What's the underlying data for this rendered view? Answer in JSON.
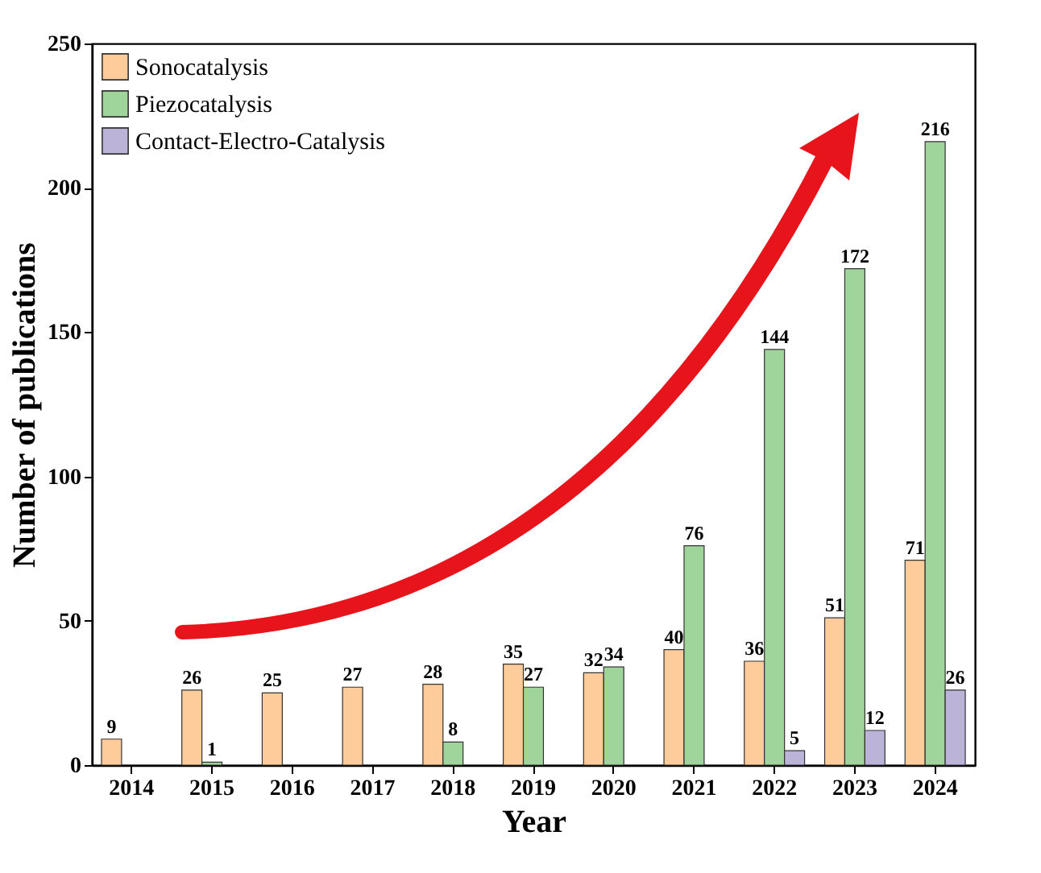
{
  "chart_data": {
    "type": "bar",
    "xlabel": "Year",
    "ylabel": "Number of publications",
    "categories": [
      "2014",
      "2015",
      "2016",
      "2017",
      "2018",
      "2019",
      "2020",
      "2021",
      "2022",
      "2023",
      "2024"
    ],
    "series": [
      {
        "name": "Sonocatalysis",
        "color": "#fdcc9a",
        "values": [
          9,
          26,
          25,
          27,
          28,
          35,
          32,
          40,
          36,
          51,
          71
        ]
      },
      {
        "name": "Piezocatalysis",
        "color": "#9fd49a",
        "values": [
          null,
          1,
          null,
          null,
          8,
          27,
          34,
          76,
          144,
          172,
          216
        ]
      },
      {
        "name": "Contact-Electro-Catalysis",
        "color": "#bcb3d8",
        "values": [
          null,
          null,
          null,
          null,
          null,
          null,
          null,
          null,
          5,
          12,
          26
        ]
      }
    ],
    "ylim": [
      0,
      250
    ],
    "yticks": [
      0,
      50,
      100,
      150,
      200,
      250
    ],
    "data_labels": true,
    "legend": "top left"
  }
}
